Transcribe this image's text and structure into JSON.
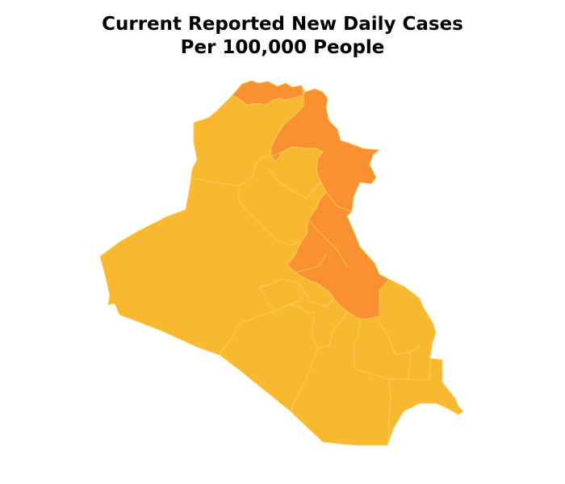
{
  "title": {
    "line1": "Current Reported New Daily Cases",
    "line2": "Per 100,000 People"
  },
  "colors": {
    "low": "#f8b931",
    "high": "#f99132",
    "border": "#fcd26a",
    "background": "#ffffff"
  },
  "map": {
    "country": "Iraq",
    "levels": {
      "duhok": "high",
      "erbil": "high",
      "sulaymaniyah": "high",
      "diyala": "high",
      "ninawa": "low",
      "kirkuk": "low",
      "salah-al-din": "low",
      "anbar": "low",
      "baghdad": "low",
      "babil": "low",
      "karbala": "low",
      "wasit": "low",
      "najaf": "low",
      "qadisiyah": "low",
      "maysan": "low",
      "dhi-qar": "low",
      "muthanna": "low",
      "basra": "low"
    }
  }
}
